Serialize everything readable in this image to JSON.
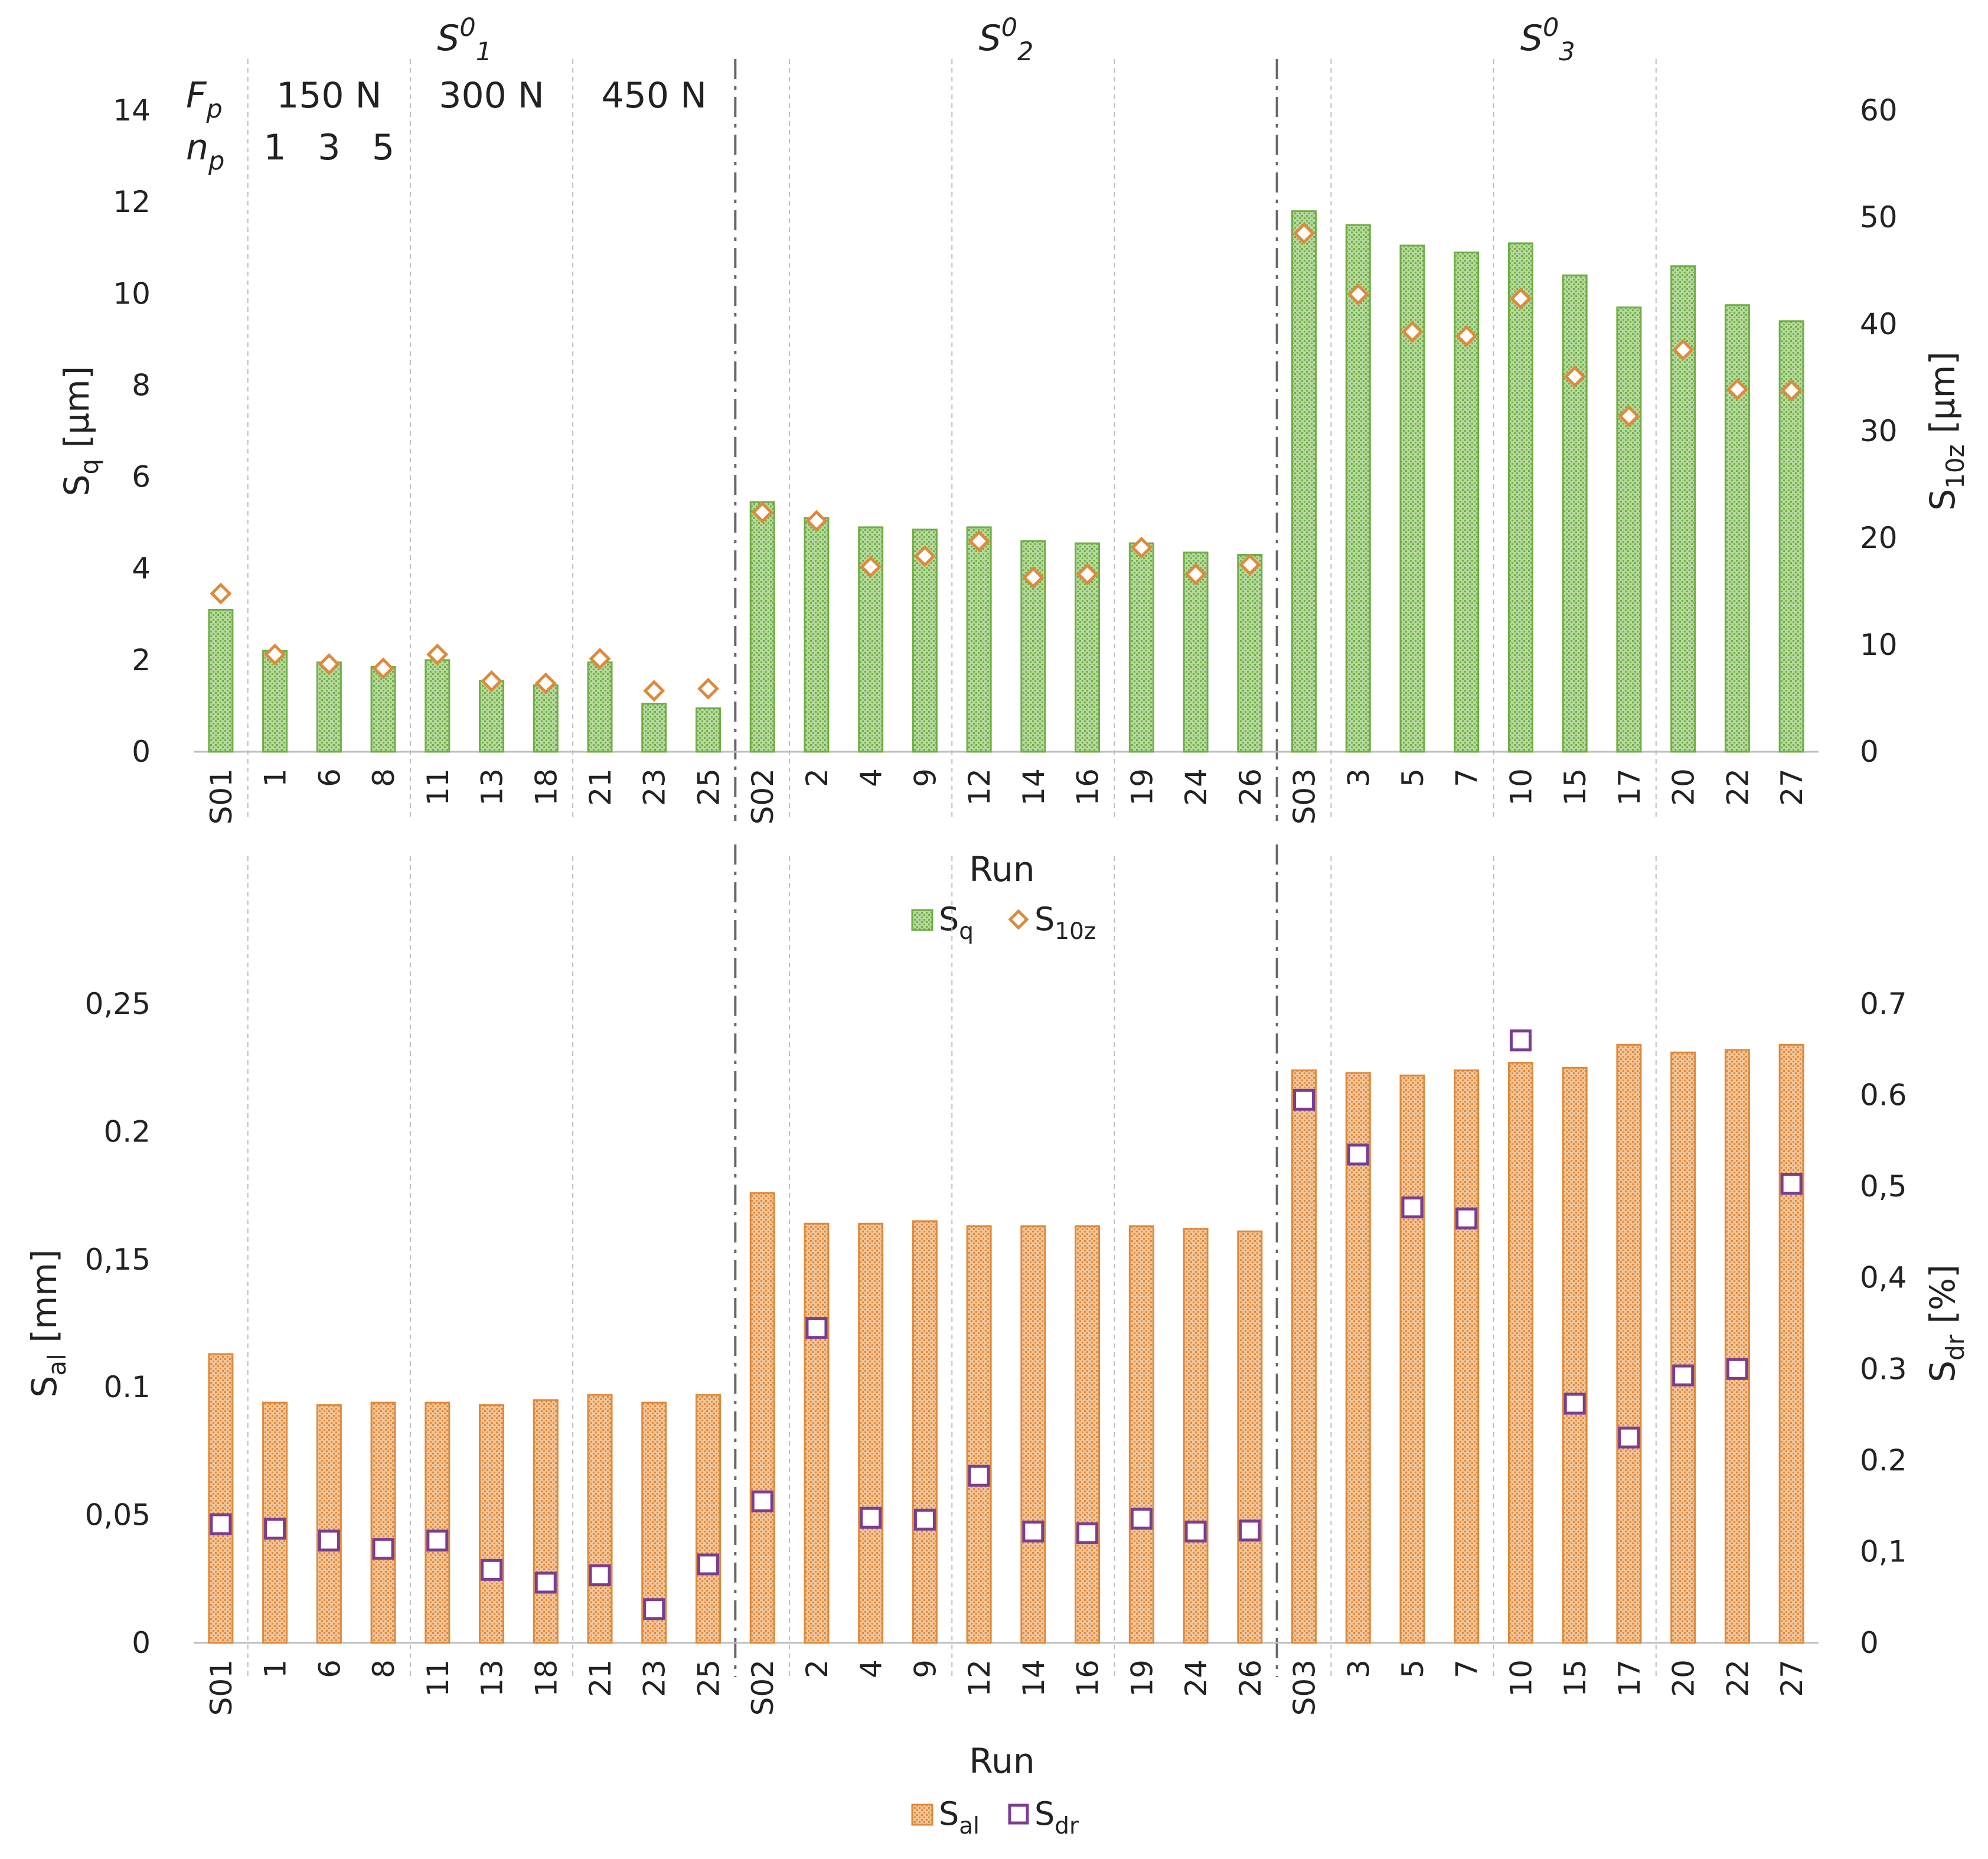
{
  "chart_data": [
    {
      "type": "bar",
      "name": "top-chart",
      "categories": [
        "S01",
        "1",
        "6",
        "8",
        "11",
        "13",
        "18",
        "21",
        "23",
        "25",
        "S02",
        "2",
        "4",
        "9",
        "12",
        "14",
        "16",
        "19",
        "24",
        "26",
        "S03",
        "3",
        "5",
        "7",
        "10",
        "15",
        "17",
        "20",
        "22",
        "27"
      ],
      "series": [
        {
          "name": "Sq",
          "kind": "bar",
          "axis": "left",
          "color": "#70ad47",
          "values": [
            3.1,
            2.2,
            1.95,
            1.85,
            2.0,
            1.55,
            1.45,
            1.95,
            1.05,
            0.95,
            5.45,
            5.1,
            4.9,
            4.85,
            4.9,
            4.6,
            4.55,
            4.55,
            4.35,
            4.3,
            11.8,
            11.5,
            11.05,
            10.9,
            11.1,
            10.4,
            9.7,
            10.6,
            9.75,
            9.4
          ]
        },
        {
          "name": "S10z",
          "kind": "marker",
          "axis": "right",
          "color": "#dd8a3c",
          "values": [
            14.8,
            9.1,
            8.2,
            7.8,
            9.1,
            6.6,
            6.4,
            8.7,
            5.7,
            5.9,
            22.4,
            21.6,
            17.3,
            18.3,
            19.7,
            16.3,
            16.6,
            19.1,
            16.6,
            17.5,
            48.5,
            42.8,
            39.3,
            38.9,
            42.4,
            35.1,
            31.4,
            37.6,
            33.9,
            33.8
          ]
        }
      ],
      "xlabel": "Run",
      "ylabel_left": {
        "base": "S",
        "sub": "q",
        "unit": " [µm]"
      },
      "ylabel_right": {
        "base": "S",
        "sub": "10z",
        "unit": " [µm]"
      },
      "ylim_left": [
        0,
        14
      ],
      "ylim_right": [
        0,
        60
      ],
      "yticks_left": [
        "0",
        "2",
        "4",
        "6",
        "8",
        "10",
        "12",
        "14"
      ],
      "yticks_right": [
        "0",
        "10",
        "20",
        "30",
        "40",
        "50",
        "60"
      ],
      "legend": [
        {
          "base": "S",
          "sub": "q"
        },
        {
          "base": "S",
          "sub": "10z"
        }
      ]
    },
    {
      "type": "bar",
      "name": "bottom-chart",
      "categories": [
        "S01",
        "1",
        "6",
        "8",
        "11",
        "13",
        "18",
        "21",
        "23",
        "25",
        "S02",
        "2",
        "4",
        "9",
        "12",
        "14",
        "16",
        "19",
        "24",
        "26",
        "S03",
        "3",
        "5",
        "7",
        "10",
        "15",
        "17",
        "20",
        "22",
        "27"
      ],
      "series": [
        {
          "name": "Sal",
          "kind": "bar",
          "axis": "left",
          "color": "#dd8a3c",
          "values": [
            0.113,
            0.094,
            0.093,
            0.094,
            0.094,
            0.093,
            0.095,
            0.097,
            0.094,
            0.097,
            0.176,
            0.164,
            0.164,
            0.165,
            0.163,
            0.163,
            0.163,
            0.163,
            0.162,
            0.161,
            0.224,
            0.223,
            0.222,
            0.224,
            0.227,
            0.225,
            0.234,
            0.231,
            0.232,
            0.234
          ]
        },
        {
          "name": "Sdr",
          "kind": "marker",
          "axis": "right",
          "color": "#7a3d91",
          "values": [
            0.13,
            0.125,
            0.112,
            0.103,
            0.112,
            0.08,
            0.066,
            0.074,
            0.037,
            0.086,
            0.155,
            0.345,
            0.137,
            0.135,
            0.183,
            0.122,
            0.12,
            0.136,
            0.122,
            0.123,
            0.595,
            0.535,
            0.477,
            0.465,
            0.66,
            0.262,
            0.225,
            0.293,
            0.3,
            0.503
          ]
        }
      ],
      "xlabel": "Run",
      "ylabel_left": {
        "base": "S",
        "sub": "al",
        "unit": " [mm]"
      },
      "ylabel_right": {
        "base": "S",
        "sub": "dr",
        "unit": " [%]"
      },
      "ylim_left": [
        0,
        0.25
      ],
      "ylim_right": [
        0,
        0.7
      ],
      "yticks_left": [
        "0",
        "0,05",
        "0.1",
        "0,15",
        "0.2",
        "0,25"
      ],
      "yticks_right": [
        "0",
        "0,1",
        "0.2",
        "0.3",
        "0,4",
        "0,5",
        "0.6",
        "0.7"
      ],
      "legend": [
        {
          "base": "S",
          "sub": "al"
        },
        {
          "base": "S",
          "sub": "dr"
        }
      ]
    }
  ],
  "groups": [
    {
      "base": "S",
      "sup": "0",
      "sub": "1"
    },
    {
      "base": "S",
      "sup": "0",
      "sub": "2"
    },
    {
      "base": "S",
      "sup": "0",
      "sub": "3"
    }
  ],
  "process_parameters": {
    "fp_label": {
      "base": "F",
      "sub": "p"
    },
    "np_label": {
      "base": "n",
      "sub": "p"
    },
    "forces": [
      "150 N",
      "300 N",
      "450 N"
    ],
    "passes": [
      "1",
      "3",
      "5"
    ]
  }
}
